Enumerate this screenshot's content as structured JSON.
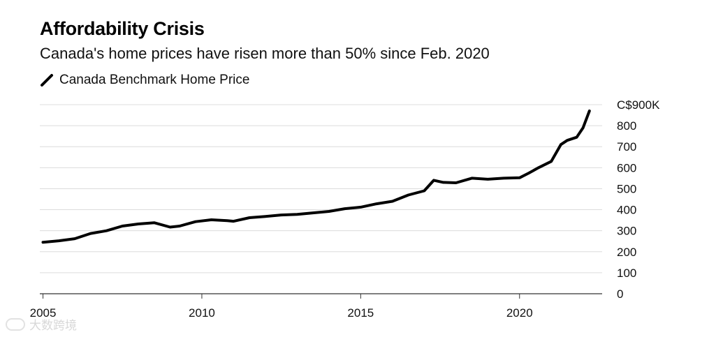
{
  "title": "Affordability Crisis",
  "subtitle": "Canada's home prices have risen more than 50% since Feb. 2020",
  "watermark": "大数跨境",
  "chart_data": {
    "type": "line",
    "title": "Affordability Crisis",
    "subtitle": "Canada's home prices have risen more than 50% since Feb. 2020",
    "legend": {
      "placement": "top-left",
      "entries": [
        "Canada Benchmark Home Price"
      ]
    },
    "y_unit": "C$ thousands",
    "ylim": [
      0,
      900
    ],
    "yticks": [
      0,
      100,
      200,
      300,
      400,
      500,
      600,
      700,
      800,
      900
    ],
    "ytick_labels": [
      "0",
      "100",
      "200",
      "300",
      "400",
      "500",
      "600",
      "700",
      "800",
      "C$900K"
    ],
    "xlim": [
      2004.9,
      2022.6
    ],
    "xticks": [
      2005,
      2010,
      2015,
      2020
    ],
    "xtick_labels": [
      "2005",
      "2010",
      "2015",
      "2020"
    ],
    "grid": true,
    "series": [
      {
        "name": "Canada Benchmark Home Price",
        "color": "#000000",
        "x": [
          2005.0,
          2005.5,
          2006.0,
          2006.5,
          2007.0,
          2007.5,
          2008.0,
          2008.5,
          2009.0,
          2009.3,
          2009.8,
          2010.3,
          2010.8,
          2011.0,
          2011.5,
          2012.0,
          2012.5,
          2013.0,
          2013.5,
          2014.0,
          2014.5,
          2015.0,
          2015.5,
          2016.0,
          2016.5,
          2017.0,
          2017.3,
          2017.6,
          2018.0,
          2018.5,
          2019.0,
          2019.5,
          2020.0,
          2020.3,
          2020.6,
          2021.0,
          2021.3,
          2021.5,
          2021.8,
          2022.0,
          2022.2
        ],
        "values": [
          245,
          252,
          262,
          287,
          300,
          322,
          332,
          338,
          317,
          322,
          343,
          352,
          348,
          345,
          362,
          368,
          375,
          378,
          385,
          392,
          405,
          412,
          428,
          440,
          470,
          490,
          540,
          530,
          528,
          550,
          545,
          550,
          552,
          575,
          600,
          630,
          710,
          730,
          745,
          790,
          870
        ]
      }
    ]
  }
}
